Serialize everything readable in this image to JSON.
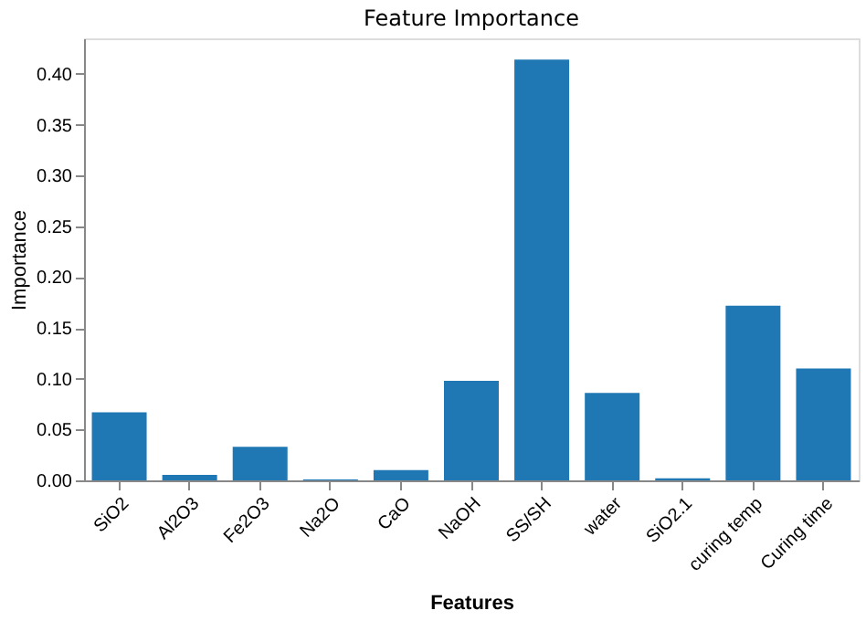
{
  "chart_data": {
    "type": "bar",
    "title": "Feature Importance",
    "xlabel": "Features",
    "ylabel": "Importance",
    "categories": [
      "SiO2",
      "Al2O3",
      "Fe2O3",
      "Na2O",
      "CaO",
      "NaOH",
      "SS/SH",
      "water",
      "SiO2.1",
      "curing temp",
      "Curing time"
    ],
    "values": [
      0.067,
      0.0055,
      0.033,
      0.001,
      0.01,
      0.098,
      0.414,
      0.086,
      0.002,
      0.172,
      0.11
    ],
    "color": "#1f77b4",
    "ylim": [
      0,
      0.435
    ],
    "yticks": [
      {
        "value": 0,
        "label": "0.00"
      },
      {
        "value": 0.05,
        "label": "0.05"
      },
      {
        "value": 0.1,
        "label": "0.10"
      },
      {
        "value": 0.15,
        "label": "0.15"
      },
      {
        "value": 0.2,
        "label": "0.20"
      },
      {
        "value": 0.25,
        "label": "0.25"
      },
      {
        "value": 0.3,
        "label": "0.30"
      },
      {
        "value": 0.35,
        "label": "0.35"
      },
      {
        "value": 0.4,
        "label": "0.40"
      }
    ],
    "grid": false
  }
}
